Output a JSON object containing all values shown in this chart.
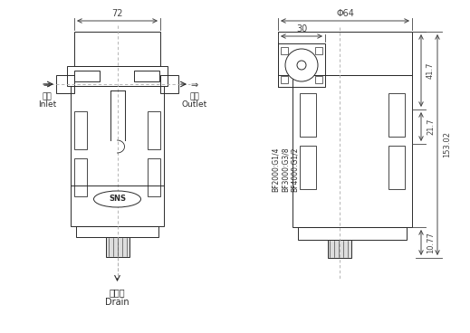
{
  "bg_color": "#ffffff",
  "lc": "#2a2a2a",
  "dc": "#444444",
  "lw": 0.7,
  "labels": {
    "inlet_cn": "入口",
    "inlet_en": "Inlet",
    "outlet_cn": "出口",
    "outlet_en": "Outlet",
    "drain_cn": "排水口",
    "drain_en": "Drain",
    "sns": "SNS",
    "bf_lines": [
      "BF2000:G1/4",
      "BF3000:G3/8",
      "BF4000:G1/2"
    ],
    "dim_72": "72",
    "dim_64": "Φ64",
    "dim_30": "30",
    "dim_41_7": "41.7",
    "dim_21_7": "21.7",
    "dim_153": "153.02",
    "dim_10_77": "10.77"
  }
}
